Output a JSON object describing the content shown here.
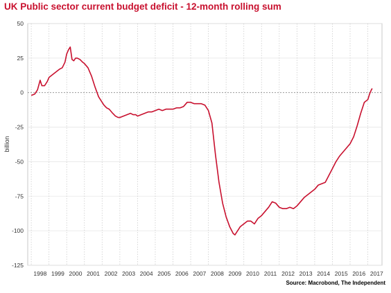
{
  "page": {
    "title": "UK Public sector current budget deficit - 12-month rolling sum",
    "source": "Source: Macrobond, The Independent"
  },
  "chart_data": {
    "type": "line",
    "title": "UK Public sector current budget deficit - 12-month rolling sum",
    "xlabel": "",
    "ylabel": "billion",
    "ylim": [
      -125,
      50
    ],
    "xlim": [
      1997.8,
      2017.8
    ],
    "yticks": [
      50,
      25,
      0,
      -25,
      -50,
      -75,
      -100,
      -125
    ],
    "xticks": [
      "1998",
      "1999",
      "2000",
      "2001",
      "2002",
      "2003",
      "2004",
      "2005",
      "2006",
      "2007",
      "2008",
      "2009",
      "2010",
      "2011",
      "2012",
      "2013",
      "2014",
      "2015",
      "2016",
      "2017"
    ],
    "grid": true,
    "zero_line": "dashed",
    "line_color": "#c8102e",
    "series": [
      {
        "x": [
          1998.0,
          1998.2,
          1998.35,
          1998.5,
          1998.6,
          1998.75,
          1998.9,
          1999.0,
          1999.2,
          1999.4,
          1999.6,
          1999.75,
          1999.9,
          2000.0,
          2000.1,
          2000.2,
          2000.3,
          2000.4,
          2000.5,
          2000.6,
          2000.75,
          2000.9,
          2001.0,
          2001.2,
          2001.4,
          2001.6,
          2001.8,
          2002.0,
          2002.1,
          2002.25,
          2002.4,
          2002.6,
          2002.75,
          2002.9,
          2003.0,
          2003.2,
          2003.4,
          2003.6,
          2003.75,
          2003.9,
          2004.0,
          2004.2,
          2004.4,
          2004.6,
          2004.8,
          2005.0,
          2005.2,
          2005.4,
          2005.6,
          2005.8,
          2006.0,
          2006.2,
          2006.4,
          2006.6,
          2006.8,
          2007.0,
          2007.2,
          2007.4,
          2007.6,
          2007.8,
          2008.0,
          2008.2,
          2008.4,
          2008.6,
          2008.8,
          2009.0,
          2009.2,
          2009.4,
          2009.5,
          2009.6,
          2009.8,
          2010.0,
          2010.2,
          2010.4,
          2010.6,
          2010.8,
          2011.0,
          2011.2,
          2011.4,
          2011.6,
          2011.8,
          2012.0,
          2012.2,
          2012.4,
          2012.6,
          2012.8,
          2013.0,
          2013.2,
          2013.4,
          2013.6,
          2013.8,
          2014.0,
          2014.2,
          2014.4,
          2014.6,
          2014.8,
          2015.0,
          2015.2,
          2015.4,
          2015.6,
          2015.8,
          2016.0,
          2016.2,
          2016.4,
          2016.6,
          2016.8,
          2017.0,
          2017.1,
          2017.2,
          2017.25
        ],
        "y": [
          -2,
          -1,
          2,
          9,
          5,
          5,
          8,
          11,
          13,
          15,
          17,
          18,
          22,
          28,
          31,
          33,
          24,
          23,
          25,
          25,
          24,
          22,
          21,
          18,
          12,
          4,
          -3,
          -7,
          -9,
          -11,
          -12,
          -15,
          -17,
          -18,
          -18,
          -17,
          -16,
          -15,
          -16,
          -16,
          -17,
          -16,
          -15,
          -14,
          -14,
          -13,
          -12,
          -13,
          -12,
          -12,
          -12,
          -11,
          -11,
          -10,
          -7,
          -7,
          -8,
          -8,
          -8,
          -9,
          -13,
          -22,
          -45,
          -65,
          -80,
          -90,
          -97,
          -102,
          -103,
          -101,
          -97,
          -95,
          -93,
          -93,
          -95,
          -91,
          -89,
          -86,
          -83,
          -79,
          -80,
          -83,
          -84,
          -84,
          -83,
          -84,
          -82,
          -79,
          -76,
          -74,
          -72,
          -70,
          -67,
          -66,
          -65,
          -60,
          -55,
          -50,
          -46,
          -43,
          -40,
          -37,
          -32,
          -24,
          -15,
          -7,
          -5,
          -1,
          2,
          3
        ]
      }
    ]
  }
}
